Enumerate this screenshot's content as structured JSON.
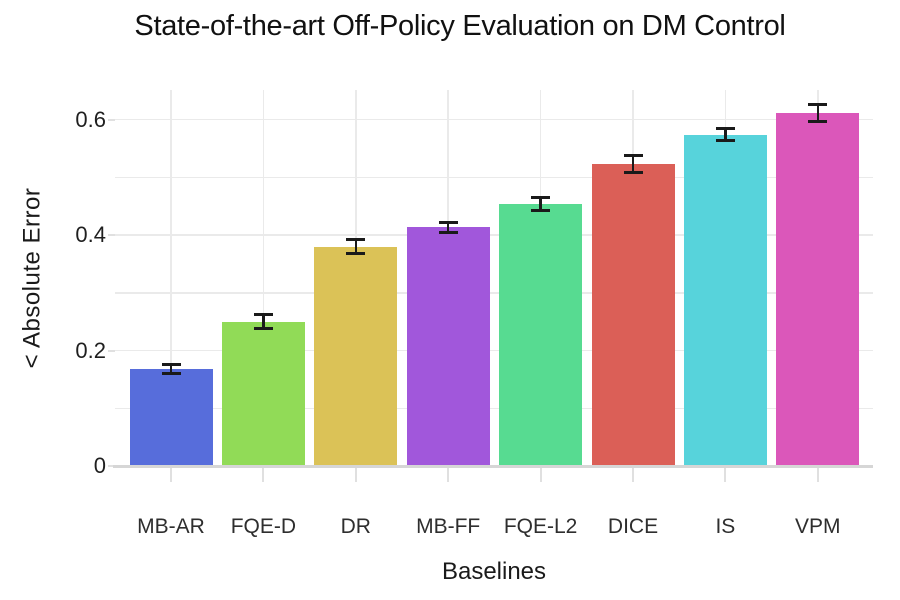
{
  "chart_data": {
    "type": "bar",
    "title": "State-of-the-art Off-Policy Evaluation on DM Control",
    "xlabel": "Baselines",
    "ylabel": "< Absolute Error",
    "categories": [
      "MB-AR",
      "FQE-D",
      "DR",
      "MB-FF",
      "FQE-L2",
      "DICE",
      "IS",
      "VPM"
    ],
    "values": [
      0.168,
      0.25,
      0.38,
      0.413,
      0.454,
      0.523,
      0.574,
      0.611
    ],
    "errors": [
      0.008,
      0.012,
      0.012,
      0.009,
      0.011,
      0.014,
      0.011,
      0.015
    ],
    "bar_colors": [
      "#576ddb",
      "#91db57",
      "#dbc257",
      "#a157db",
      "#57db91",
      "#db5f57",
      "#57d3db",
      "#db57ba"
    ],
    "yticks": {
      "values": [
        0,
        0.2,
        0.4,
        0.6
      ],
      "labels": [
        "0",
        "0.2",
        "0.4",
        "0.6"
      ]
    },
    "ylim": [
      0,
      0.651
    ],
    "grid": {
      "horizontal_interval": 0.1,
      "vertical": "at category centers",
      "gridline_color": "#eaeaea",
      "axis_line_color": "#d6d6d6",
      "tick_color": "#e0e0e0"
    },
    "error_bar_color": "#1a1a1a",
    "legend": "none",
    "background_color": "#ffffff"
  }
}
